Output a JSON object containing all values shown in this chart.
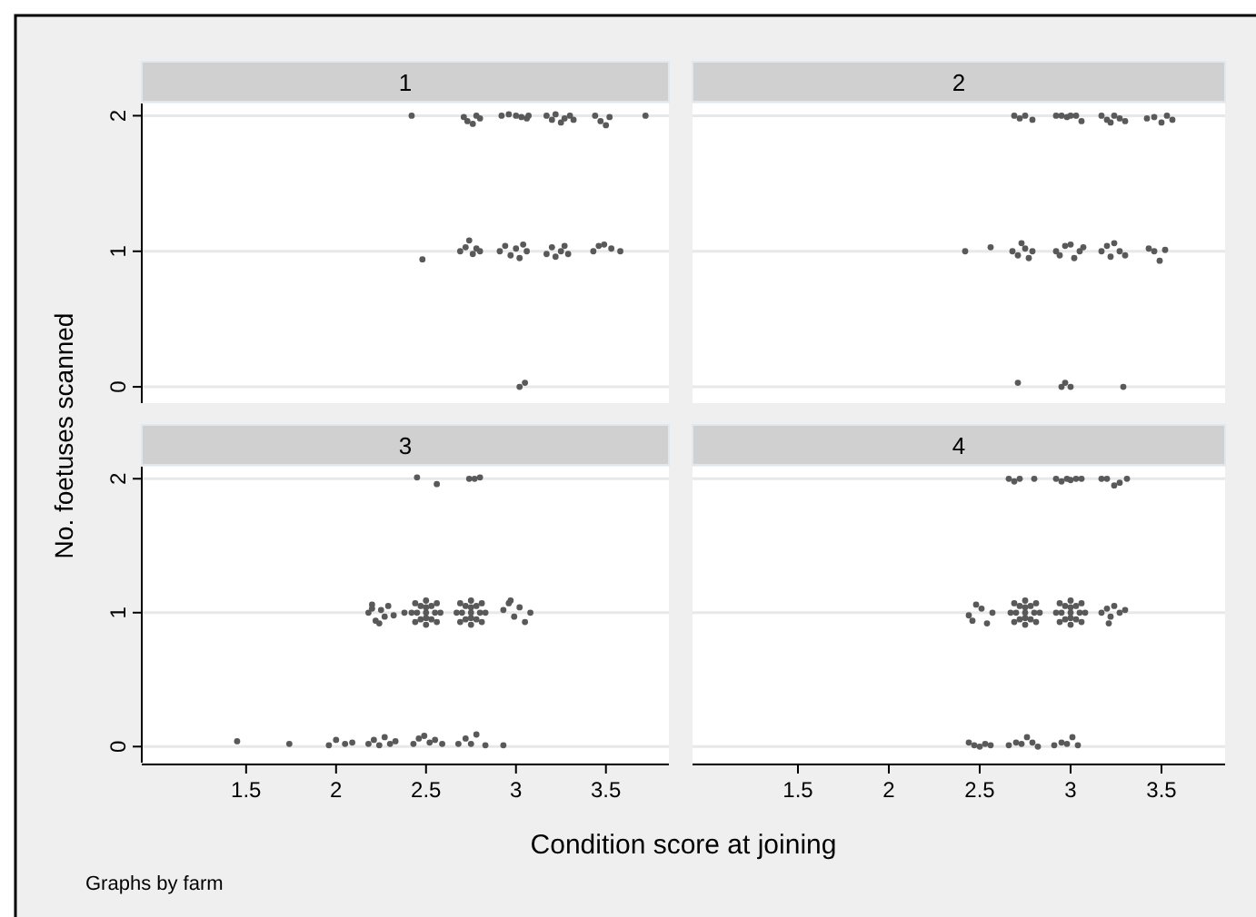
{
  "chart_data": [
    {
      "type": "scatter",
      "title": "1",
      "ylabel": "No. foetuses scanned",
      "xlabel": "Condition score at joining",
      "annotations": [
        "Graphs by farm"
      ],
      "xlim": [
        0.92,
        3.85
      ],
      "ylim": [
        -0.12,
        2.09
      ],
      "yticks": [
        0,
        1,
        2
      ],
      "grid": "y",
      "marker": "circle",
      "tick_labels": "y",
      "series": [
        {
          "color": "#595959",
          "x": [
            2.42,
            2.71,
            2.73,
            2.76,
            2.78,
            2.8,
            2.92,
            2.96,
            3.0,
            3.03,
            3.06,
            3.07,
            3.17,
            3.2,
            3.22,
            3.25,
            3.27,
            3.3,
            3.32,
            3.44,
            3.47,
            3.5,
            3.52,
            3.72,
            2.48,
            2.69,
            2.72,
            2.74,
            2.76,
            2.78,
            2.8,
            2.91,
            2.94,
            2.97,
            3.0,
            3.02,
            3.04,
            3.06,
            3.17,
            3.2,
            3.22,
            3.25,
            3.27,
            3.29,
            3.43,
            3.46,
            3.49,
            3.53,
            3.58,
            3.02,
            3.05
          ],
          "values": [
            2.0,
            1.99,
            1.96,
            1.94,
            2.0,
            1.98,
            2.0,
            2.01,
            2.0,
            1.99,
            1.98,
            2.0,
            2.0,
            1.97,
            2.01,
            1.95,
            1.98,
            2.0,
            1.97,
            2.0,
            1.96,
            1.93,
            1.99,
            2.0,
            0.94,
            1.0,
            1.03,
            1.08,
            0.98,
            1.02,
            1.0,
            1.0,
            1.04,
            0.97,
            1.02,
            0.95,
            1.05,
            1.0,
            0.98,
            1.03,
            0.96,
            1.0,
            1.04,
            0.98,
            1.0,
            1.04,
            1.05,
            1.02,
            1.0,
            0.0,
            0.03
          ]
        }
      ]
    },
    {
      "type": "scatter",
      "title": "2",
      "xlim": [
        0.92,
        3.85
      ],
      "ylim": [
        -0.12,
        2.09
      ],
      "yticks": [
        0,
        1,
        2
      ],
      "grid": "y",
      "marker": "circle",
      "tick_labels": false,
      "series": [
        {
          "color": "#595959",
          "x": [
            2.69,
            2.72,
            2.75,
            2.79,
            2.92,
            2.95,
            2.98,
            3.0,
            3.03,
            3.06,
            3.17,
            3.2,
            3.22,
            3.24,
            3.27,
            3.3,
            3.42,
            3.46,
            3.5,
            3.53,
            3.56,
            2.42,
            2.56,
            2.68,
            2.71,
            2.73,
            2.75,
            2.77,
            2.79,
            2.92,
            2.94,
            2.97,
            3.0,
            3.02,
            3.05,
            3.07,
            3.17,
            3.2,
            3.22,
            3.24,
            3.27,
            3.3,
            3.43,
            3.46,
            3.49,
            3.52,
            2.71,
            2.95,
            2.97,
            3.0,
            3.29
          ],
          "values": [
            2.0,
            1.98,
            2.0,
            1.97,
            2.0,
            2.0,
            1.99,
            2.0,
            2.0,
            1.96,
            2.0,
            1.97,
            1.95,
            2.0,
            1.98,
            1.96,
            1.98,
            1.99,
            1.95,
            2.0,
            1.97,
            1.0,
            1.03,
            1.0,
            0.97,
            1.06,
            1.02,
            0.95,
            1.0,
            1.0,
            0.97,
            1.04,
            1.05,
            0.95,
            1.0,
            1.03,
            1.0,
            1.04,
            0.96,
            1.06,
            1.0,
            0.97,
            1.02,
            1.0,
            0.93,
            1.01,
            0.03,
            0.0,
            0.03,
            0.0,
            0.0
          ]
        }
      ]
    },
    {
      "type": "scatter",
      "title": "3",
      "xlim": [
        0.92,
        3.85
      ],
      "ylim": [
        -0.12,
        2.09
      ],
      "xticks": [
        1.5,
        2,
        2.5,
        3,
        3.5
      ],
      "yticks": [
        0,
        1,
        2
      ],
      "grid": "y",
      "marker": "circle",
      "series": [
        {
          "color": "#595959",
          "x": [
            1.45,
            1.74,
            1.96,
            2.0,
            2.05,
            2.09,
            2.18,
            2.21,
            2.24,
            2.27,
            2.3,
            2.33,
            2.43,
            2.46,
            2.49,
            2.52,
            2.55,
            2.59,
            2.68,
            2.72,
            2.75,
            2.78,
            2.83,
            2.93,
            2.45,
            2.56,
            2.74,
            2.77,
            2.8,
            2.18,
            2.2,
            2.22,
            2.25,
            2.27,
            2.29,
            2.32,
            2.24,
            2.2,
            2.38,
            2.5,
            2.45,
            2.55,
            2.47,
            2.53,
            2.47,
            2.53,
            2.42,
            2.58,
            2.44,
            2.56,
            2.44,
            2.56,
            2.5,
            2.5,
            2.5,
            2.5,
            2.75,
            2.7,
            2.8,
            2.72,
            2.78,
            2.72,
            2.78,
            2.67,
            2.83,
            2.69,
            2.81,
            2.69,
            2.81,
            2.75,
            2.75,
            2.75,
            2.75,
            2.93,
            2.96,
            2.99,
            3.02,
            3.05,
            3.08,
            2.97
          ],
          "values": [
            0.04,
            0.02,
            0.01,
            0.05,
            0.02,
            0.03,
            0.02,
            0.05,
            0.01,
            0.07,
            0.02,
            0.04,
            0.02,
            0.06,
            0.08,
            0.03,
            0.05,
            0.02,
            0.02,
            0.06,
            0.02,
            0.09,
            0.01,
            0.01,
            2.01,
            1.96,
            2.0,
            2.0,
            2.01,
            1.0,
            1.06,
            0.94,
            1.02,
            0.97,
            1.05,
            0.98,
            0.92,
            1.03,
            1.0,
            1.0,
            1.0,
            1.0,
            1.05,
            1.05,
            0.95,
            0.95,
            1.0,
            1.0,
            1.07,
            1.07,
            0.93,
            0.93,
            1.09,
            0.91,
            1.04,
            0.96,
            1.0,
            1.0,
            1.0,
            1.05,
            1.05,
            0.95,
            0.95,
            1.0,
            1.0,
            1.07,
            1.07,
            0.93,
            0.93,
            1.09,
            0.91,
            1.04,
            0.96,
            1.02,
            1.07,
            0.97,
            1.04,
            0.93,
            1.0,
            1.09
          ]
        }
      ]
    },
    {
      "type": "scatter",
      "title": "4",
      "xlim": [
        0.92,
        3.85
      ],
      "ylim": [
        -0.12,
        2.09
      ],
      "xticks": [
        1.5,
        2,
        2.5,
        3,
        3.5
      ],
      "yticks": [
        0,
        1,
        2
      ],
      "grid": "y",
      "marker": "circle",
      "tick_labels": "x",
      "series": [
        {
          "color": "#595959",
          "x": [
            2.66,
            2.69,
            2.72,
            2.8,
            2.92,
            2.95,
            2.98,
            3.0,
            3.03,
            3.06,
            3.17,
            3.2,
            3.24,
            3.27,
            3.31,
            2.44,
            2.46,
            2.48,
            2.51,
            2.54,
            2.57,
            2.75,
            2.7,
            2.8,
            2.72,
            2.78,
            2.72,
            2.78,
            2.67,
            2.83,
            2.69,
            2.81,
            2.69,
            2.81,
            2.75,
            2.75,
            2.75,
            2.75,
            3.0,
            2.95,
            3.05,
            2.97,
            3.03,
            2.97,
            3.03,
            2.92,
            3.08,
            2.94,
            3.06,
            2.94,
            3.06,
            3.0,
            3.0,
            3.0,
            3.0,
            3.17,
            3.2,
            3.22,
            3.24,
            3.27,
            3.3,
            3.21,
            2.44,
            2.47,
            2.5,
            2.53,
            2.56,
            2.66,
            2.7,
            2.73,
            2.76,
            2.79,
            2.82,
            2.91,
            2.95,
            2.98,
            3.01,
            3.04
          ],
          "values": [
            2.0,
            1.98,
            2.0,
            2.0,
            2.0,
            1.98,
            2.0,
            1.99,
            2.0,
            2.0,
            2.0,
            2.0,
            1.95,
            1.97,
            2.0,
            0.98,
            0.94,
            1.06,
            1.03,
            0.92,
            1.0,
            1.0,
            1.0,
            1.0,
            1.05,
            1.05,
            0.95,
            0.95,
            1.0,
            1.0,
            1.07,
            1.07,
            0.93,
            0.93,
            1.09,
            0.91,
            1.04,
            0.96,
            1.0,
            1.0,
            1.0,
            1.05,
            1.05,
            0.95,
            0.95,
            1.0,
            1.0,
            1.07,
            1.07,
            0.93,
            0.93,
            1.09,
            0.91,
            1.04,
            0.96,
            1.0,
            1.03,
            0.97,
            1.05,
            1.0,
            1.02,
            0.92,
            0.03,
            0.01,
            0.0,
            0.02,
            0.01,
            0.01,
            0.03,
            0.02,
            0.07,
            0.03,
            0.0,
            0.01,
            0.03,
            0.02,
            0.07,
            0.01
          ]
        }
      ]
    }
  ]
}
